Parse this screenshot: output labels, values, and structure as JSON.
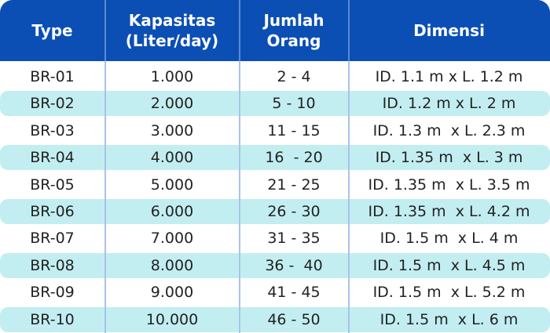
{
  "table": {
    "headers": [
      "Type",
      "Kapasitas\n(Liter/day)",
      "Jumlah\nOrang",
      "Dimensi"
    ],
    "rows": [
      [
        "BR-01",
        "1.000",
        "2 - 4",
        "ID. 1.1 m x L. 1.2 m"
      ],
      [
        "BR-02",
        "2.000",
        "5 - 10",
        "ID. 1.2 m x L. 2 m"
      ],
      [
        "BR-03",
        "3.000",
        "11 - 15",
        "ID. 1.3 m  x L. 2.3 m"
      ],
      [
        "BR-04",
        "4.000",
        "16  - 20",
        "ID. 1.35 m  x L. 3 m"
      ],
      [
        "BR-05",
        "5.000",
        "21 - 25",
        "ID. 1.35 m  x L. 3.5 m"
      ],
      [
        "BR-06",
        "6.000",
        "26 - 30",
        "ID. 1.35 m  x L. 4.2 m"
      ],
      [
        "BR-07",
        "7.000",
        "31 - 35",
        "ID. 1.5 m  x L. 4 m"
      ],
      [
        "BR-08",
        "8.000",
        "36 -  40",
        "ID. 1.5 m  x L. 4.5 m"
      ],
      [
        "BR-09",
        "9.000",
        "41 - 45",
        "ID. 1.5 m  x L. 5.2 m"
      ],
      [
        "BR-10",
        "10.000",
        "46 - 50",
        "ID. 1.5 m  x L. 6 m"
      ]
    ]
  }
}
